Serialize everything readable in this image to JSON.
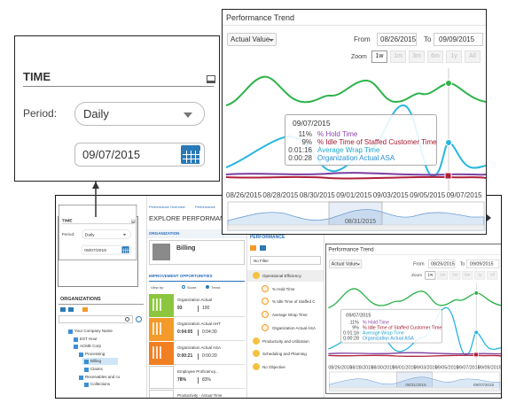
{
  "time_panel": {
    "title": "TIME",
    "period_label": "Period:",
    "period": "Daily",
    "date": "09/07/2015"
  },
  "trend": {
    "title": "Performance Trend",
    "measure": "Actual Value",
    "from_label": "From",
    "from": "08/26/2015",
    "to_label": "To",
    "to": "09/09/2015",
    "zoom_label": "Zoom",
    "zoom_options": [
      "1w",
      "1m",
      "3m",
      "6m",
      "1y",
      "All"
    ],
    "tooltip": {
      "date": "09/07/2015",
      "rows": [
        {
          "value": "11%",
          "label": "% Hold Time",
          "color": "#8e44ad"
        },
        {
          "value": "9%",
          "label": "% Idle Time of Staffed Customer Time",
          "color": "#a3192f"
        },
        {
          "value": "0:01:16",
          "label": "Average Wrap Time",
          "color": "#1fa9c9"
        },
        {
          "value": "0:00:28",
          "label": "Organization Actual ASA",
          "color": "#2b8fd0"
        }
      ]
    },
    "x_labels": [
      "08/26/2015",
      "08/28/2015",
      "08/30/2015",
      "09/01/2015",
      "09/03/2015",
      "09/05/2015",
      "09/07/2015"
    ],
    "navigator_labels": [
      "08/31/2015"
    ]
  },
  "app": {
    "breadcrumb": [
      "Performance Overview",
      "Performance"
    ],
    "page_title": "EXPLORE PERFORMANCE",
    "time": {
      "title": "TIME",
      "period_label": "Period:",
      "period": "Daily",
      "date": "09/07/2015"
    },
    "organizations": {
      "title": "ORGANIZATIONS",
      "tree": [
        "Your Company Name",
        "EST Hour",
        "ACME Corp",
        "Processing",
        "Billing",
        "Claims",
        "Receivables and co",
        "Collections"
      ]
    },
    "organization": {
      "title": "ORGANIZATION",
      "name": "Billing"
    },
    "opportunities": {
      "title": "IMPROVEMENT OPPORTUNITIES",
      "view_by": "View by:",
      "options": [
        "Score",
        "Trend"
      ],
      "cards": [
        {
          "name": "Organization Actual",
          "actual": "93",
          "target": "100",
          "color": "#8cc63e"
        },
        {
          "name": "Organization Actual AHT",
          "actual": "0:04:05",
          "target": "0:04:30",
          "color": "#f39a2b"
        },
        {
          "name": "Organization Actual ASA",
          "actual": "0:00:21",
          "target": "0:00:20",
          "color": "#f07f22"
        },
        {
          "name": "Employee Proficiency...",
          "actual": "78%",
          "target": "83%",
          "color": "#ffffff"
        },
        {
          "name": "Productivity - Actual Time",
          "color": "#ffffff"
        }
      ]
    },
    "performance": {
      "title": "PERFORMANCE",
      "filter": "No Filter",
      "objectives": [
        {
          "name": "Operational Efficiency",
          "metrics": [
            "% Hold Time",
            "% Idle Time of Staffed C",
            "Average Wrap Time",
            "Organization Actual ASA"
          ]
        },
        {
          "name": "Productivity and Utilization",
          "metrics": []
        },
        {
          "name": "Scheduling and Planning",
          "metrics": []
        },
        {
          "name": "No Objective",
          "metrics": []
        }
      ]
    },
    "mini_trend": {
      "title": "Performance Trend",
      "measure": "Actual Value",
      "from_label": "From",
      "from": "08/26/2015",
      "to_label": "To",
      "to": "09/09/2015",
      "zoom_label": "Zoom",
      "zoom_options": [
        "1w",
        "1m",
        "3m",
        "6m",
        "1y",
        "All"
      ],
      "tooltip": {
        "date": "09/07/2015",
        "rows": [
          {
            "value": "11%",
            "label": "% Hold Time",
            "color": "#8e44ad"
          },
          {
            "value": "9%",
            "label": "% Idle Time of Staffed Customer Time",
            "color": "#a3192f"
          },
          {
            "value": "0:01:16",
            "label": "Average Wrap Time",
            "color": "#1fa9c9"
          },
          {
            "value": "0:00:28",
            "label": "Organization Actual ASA",
            "color": "#2b8fd0"
          }
        ]
      },
      "x_labels": [
        "08/26/2015",
        "08/28/2015",
        "08/30/2015",
        "09/01/2015",
        "09/03/2015",
        "09/05/2015",
        "09/07/2015",
        "09/09/2015"
      ],
      "navigator_labels": [
        "08/31/2015",
        "09/07/2015"
      ]
    }
  }
}
